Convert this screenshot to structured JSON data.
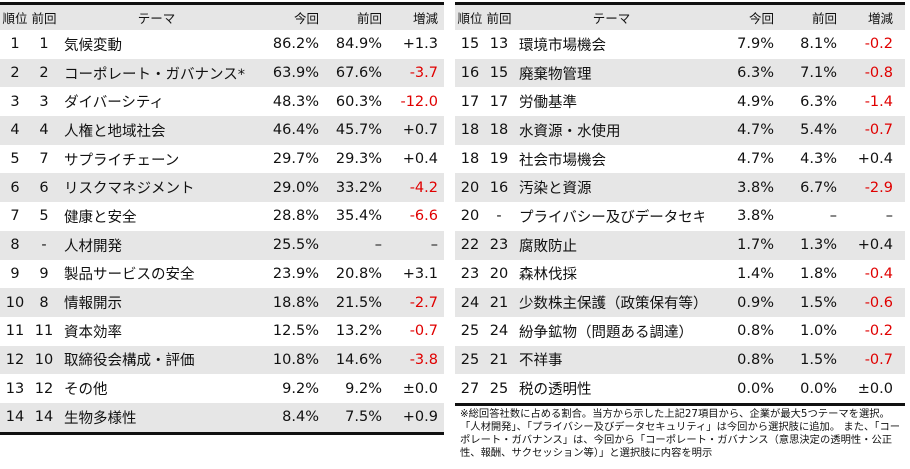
{
  "headers": {
    "rank": "順位",
    "prev_rank": "前回",
    "theme": "テーマ",
    "current": "今回",
    "previous": "前回",
    "change": "増減"
  },
  "left_rows": [
    {
      "rank": "1",
      "prev": "1",
      "theme": "気候変動",
      "cur": "86.2%",
      "prevpct": "84.9%",
      "diff": "+1.3"
    },
    {
      "rank": "2",
      "prev": "2",
      "theme": "コーポレート・ガバナンス*",
      "cur": "63.9%",
      "prevpct": "67.6%",
      "diff": "-3.7"
    },
    {
      "rank": "3",
      "prev": "3",
      "theme": "ダイバーシティ",
      "cur": "48.3%",
      "prevpct": "60.3%",
      "diff": "-12.0"
    },
    {
      "rank": "4",
      "prev": "4",
      "theme": "人権と地域社会",
      "cur": "46.4%",
      "prevpct": "45.7%",
      "diff": "+0.7"
    },
    {
      "rank": "5",
      "prev": "7",
      "theme": "サプライチェーン",
      "cur": "29.7%",
      "prevpct": "29.3%",
      "diff": "+0.4"
    },
    {
      "rank": "6",
      "prev": "6",
      "theme": "リスクマネジメント",
      "cur": "29.0%",
      "prevpct": "33.2%",
      "diff": "-4.2"
    },
    {
      "rank": "7",
      "prev": "5",
      "theme": "健康と安全",
      "cur": "28.8%",
      "prevpct": "35.4%",
      "diff": "-6.6"
    },
    {
      "rank": "8",
      "prev": "-",
      "theme": "人材開発",
      "cur": "25.5%",
      "prevpct": "–",
      "diff": "–"
    },
    {
      "rank": "9",
      "prev": "9",
      "theme": "製品サービスの安全",
      "cur": "23.9%",
      "prevpct": "20.8%",
      "diff": "+3.1"
    },
    {
      "rank": "10",
      "prev": "8",
      "theme": "情報開示",
      "cur": "18.8%",
      "prevpct": "21.5%",
      "diff": "-2.7"
    },
    {
      "rank": "11",
      "prev": "11",
      "theme": "資本効率",
      "cur": "12.5%",
      "prevpct": "13.2%",
      "diff": "-0.7"
    },
    {
      "rank": "12",
      "prev": "10",
      "theme": "取締役会構成・評価",
      "cur": "10.8%",
      "prevpct": "14.6%",
      "diff": "-3.8"
    },
    {
      "rank": "13",
      "prev": "12",
      "theme": "その他",
      "cur": "9.2%",
      "prevpct": "9.2%",
      "diff": "±0.0"
    },
    {
      "rank": "14",
      "prev": "14",
      "theme": "生物多様性",
      "cur": "8.4%",
      "prevpct": "7.5%",
      "diff": "+0.9"
    }
  ],
  "right_rows": [
    {
      "rank": "15",
      "prev": "13",
      "theme": "環境市場機会",
      "cur": "7.9%",
      "prevpct": "8.1%",
      "diff": "-0.2"
    },
    {
      "rank": "16",
      "prev": "15",
      "theme": "廃棄物管理",
      "cur": "6.3%",
      "prevpct": "7.1%",
      "diff": "-0.8"
    },
    {
      "rank": "17",
      "prev": "17",
      "theme": "労働基準",
      "cur": "4.9%",
      "prevpct": "6.3%",
      "diff": "-1.4"
    },
    {
      "rank": "18",
      "prev": "18",
      "theme": "水資源・水使用",
      "cur": "4.7%",
      "prevpct": "5.4%",
      "diff": "-0.7"
    },
    {
      "rank": "18",
      "prev": "19",
      "theme": "社会市場機会",
      "cur": "4.7%",
      "prevpct": "4.3%",
      "diff": "+0.4"
    },
    {
      "rank": "20",
      "prev": "16",
      "theme": "汚染と資源",
      "cur": "3.8%",
      "prevpct": "6.7%",
      "diff": "-2.9"
    },
    {
      "rank": "20",
      "prev": "-",
      "theme": "プライバシー及びデータセキュリティ",
      "cur": "3.8%",
      "prevpct": "–",
      "diff": "–"
    },
    {
      "rank": "22",
      "prev": "23",
      "theme": "腐敗防止",
      "cur": "1.7%",
      "prevpct": "1.3%",
      "diff": "+0.4"
    },
    {
      "rank": "23",
      "prev": "20",
      "theme": "森林伐採",
      "cur": "1.4%",
      "prevpct": "1.8%",
      "diff": "-0.4"
    },
    {
      "rank": "24",
      "prev": "21",
      "theme": "少数株主保護（政策保有等）",
      "cur": "0.9%",
      "prevpct": "1.5%",
      "diff": "-0.6"
    },
    {
      "rank": "25",
      "prev": "24",
      "theme": "紛争鉱物（問題ある調達）",
      "cur": "0.8%",
      "prevpct": "1.0%",
      "diff": "-0.2"
    },
    {
      "rank": "25",
      "prev": "21",
      "theme": "不祥事",
      "cur": "0.8%",
      "prevpct": "1.5%",
      "diff": "-0.7"
    },
    {
      "rank": "27",
      "prev": "25",
      "theme": "税の透明性",
      "cur": "0.0%",
      "prevpct": "0.0%",
      "diff": "±0.0"
    }
  ],
  "note": "※総回答社数に占める割合。当方から示した上記27項目から、企業が最大5つテーマを選択。「人材開発」、「プライバシー及びデータセキュリティ」は今回から選択肢に追加。 また、「コーポレート・ガバナンス」は、今回から「コーポレート・ガバナンス（意思決定の透明性・公正性、報酬、サクセッション等）」と選択肢に内容を明示",
  "colors": {
    "negative": "#e00000",
    "stripe": "#e6e6e6"
  }
}
